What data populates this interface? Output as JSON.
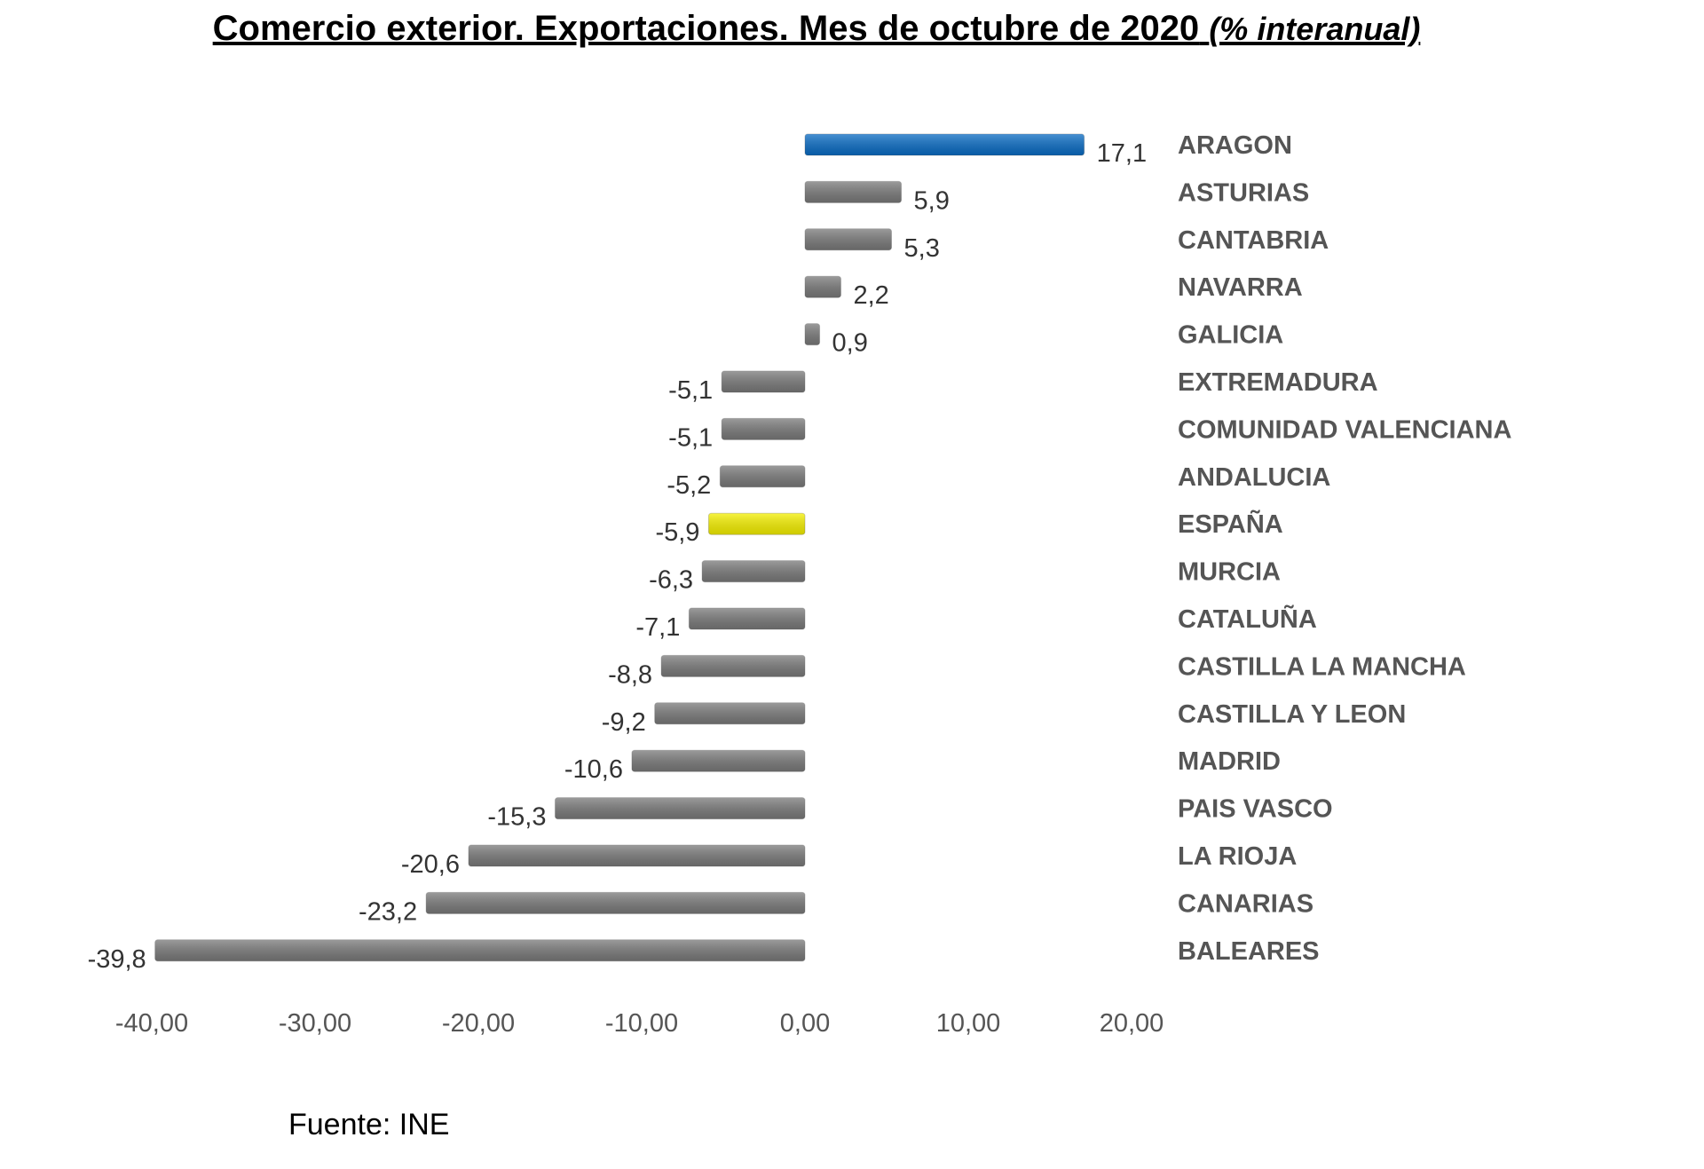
{
  "chart_data": {
    "type": "bar",
    "orientation": "horizontal",
    "title": "Comercio exterior. Exportaciones. Mes de octubre de 2020",
    "subtitle": "(% interanual)",
    "source": "Fuente: INE",
    "categories": [
      "ARAGON",
      "ASTURIAS",
      "CANTABRIA",
      "NAVARRA",
      "GALICIA",
      "EXTREMADURA",
      "COMUNIDAD VALENCIANA",
      "ANDALUCIA",
      "ESPAÑA",
      "MURCIA",
      "CATALUÑA",
      "CASTILLA LA MANCHA",
      "CASTILLA Y LEON",
      "MADRID",
      "PAIS VASCO",
      "LA RIOJA",
      "CANARIAS",
      "BALEARES"
    ],
    "values": [
      17.1,
      5.9,
      5.3,
      2.2,
      0.9,
      -5.1,
      -5.1,
      -5.2,
      -5.9,
      -6.3,
      -7.1,
      -8.8,
      -9.2,
      -10.6,
      -15.3,
      -20.6,
      -23.2,
      -39.8
    ],
    "value_labels": [
      "17,1",
      "5,9",
      "5,3",
      "2,2",
      "0,9",
      "-5,1",
      "-5,1",
      "-5,2",
      "-5,9",
      "-6,3",
      "-7,1",
      "-8,8",
      "-9,2",
      "-10,6",
      "-15,3",
      "-20,6",
      "-23,2",
      "-39,8"
    ],
    "xlim": [
      -40,
      20
    ],
    "x_ticks": [
      "-40,00",
      "-30,00",
      "-20,00",
      "-10,00",
      "0,00",
      "10,00",
      "20,00"
    ],
    "x_tick_values": [
      -40,
      -30,
      -20,
      -10,
      0,
      10,
      20
    ],
    "grid": false,
    "legend": "none",
    "colors": {
      "default": "#7a7a7a",
      "ARAGON": "#0a6cc4",
      "ESPAÑA": "#f5f000",
      "label": "#555555",
      "value": "#333333"
    }
  }
}
